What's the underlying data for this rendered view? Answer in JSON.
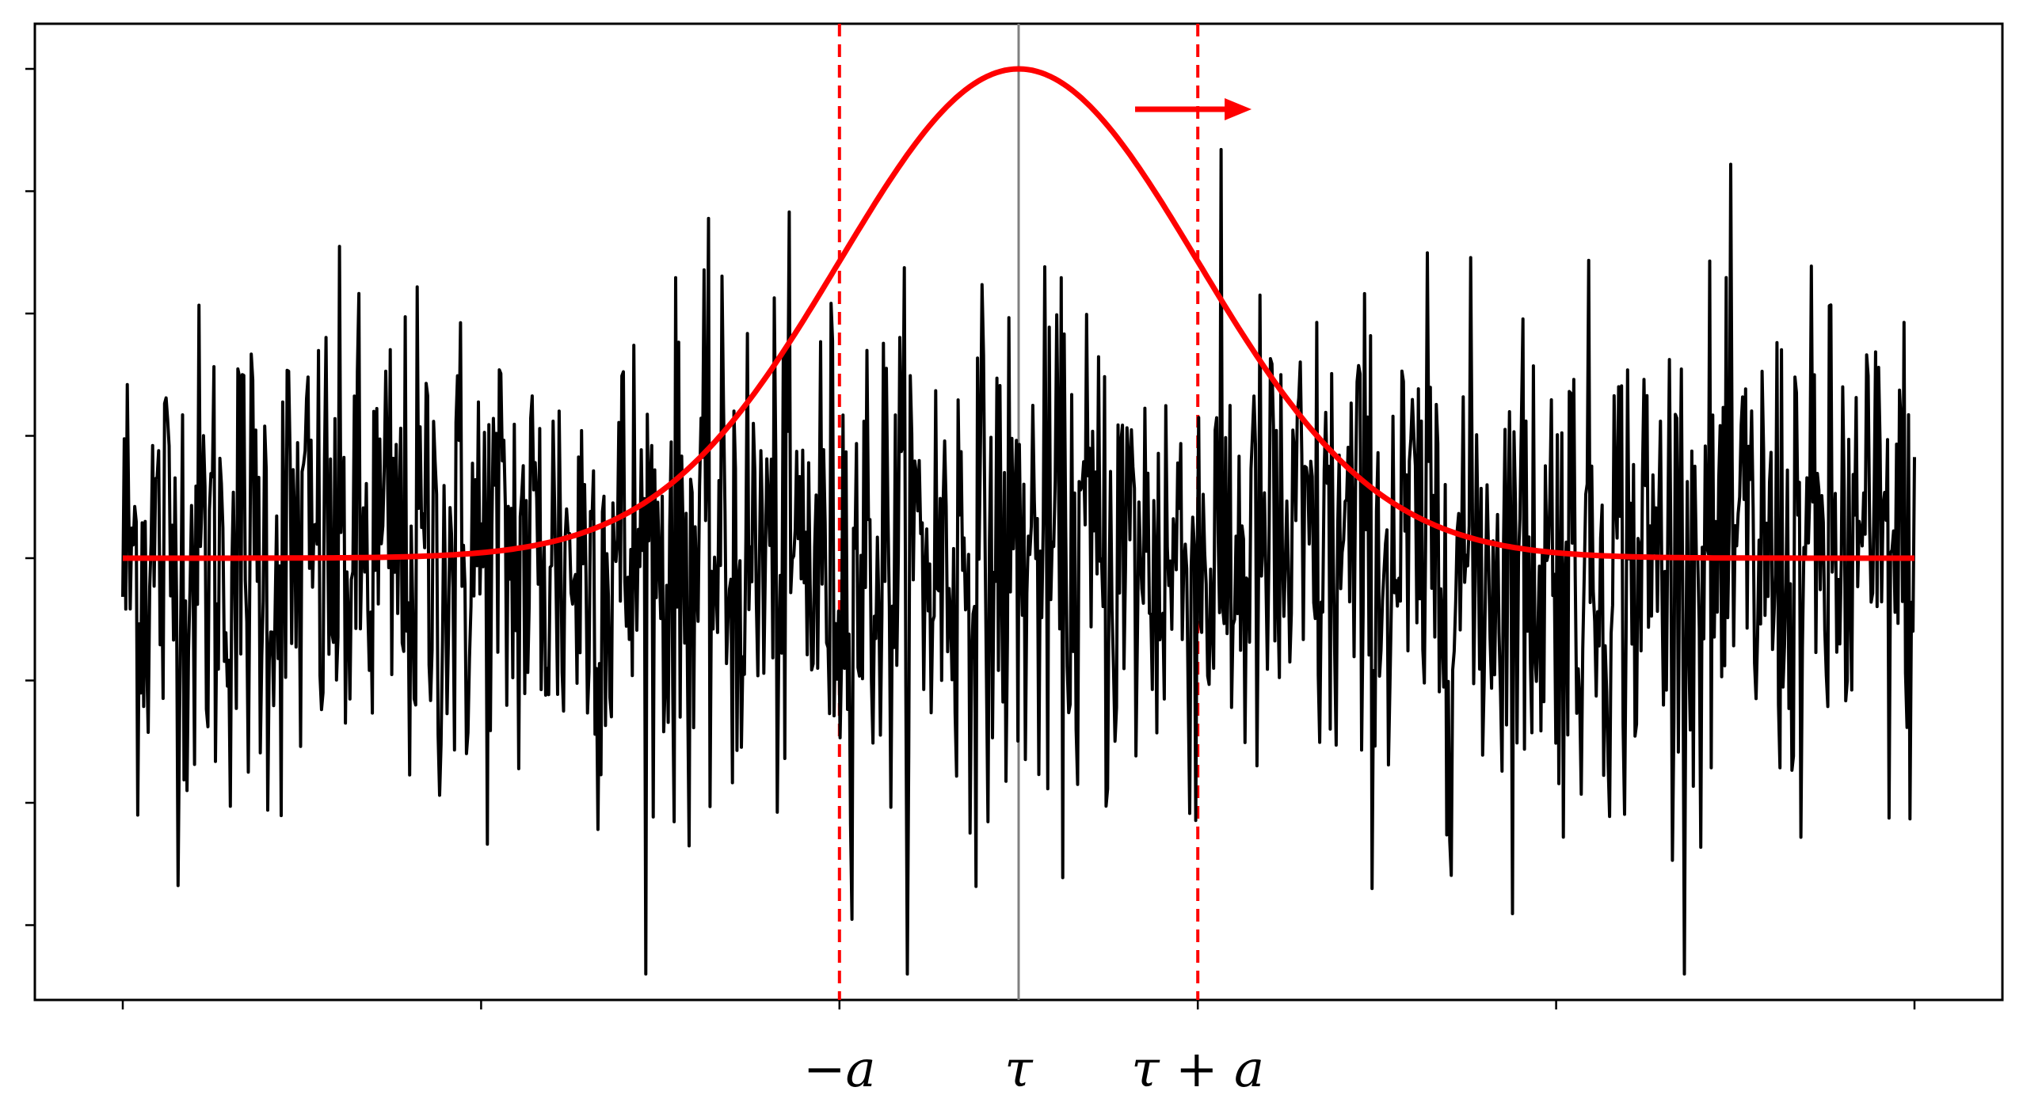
{
  "chart_data": {
    "type": "line",
    "title": "",
    "xlabel": "",
    "ylabel": "",
    "xlim": [
      0,
      10
    ],
    "ylim": [
      -3.6,
      4.4
    ],
    "grid": false,
    "x_ticks": [
      0,
      2,
      4,
      5,
      6,
      8,
      10
    ],
    "x_tick_labels": [
      {
        "x": 4,
        "text": "−a"
      },
      {
        "x": 5,
        "text": "τ"
      },
      {
        "x": 6,
        "text": "τ + a"
      }
    ],
    "y_ticks": [
      -3,
      -2,
      -1,
      0,
      1,
      2,
      3,
      4
    ],
    "series": [
      {
        "kind": "noise",
        "color": "#000000",
        "x_start": 0,
        "x_end": 10,
        "n_points": 1200,
        "amplitude_typical": 1.2,
        "amplitude_max": 3.4
      },
      {
        "kind": "gaussian",
        "color": "#ff0000",
        "center": 5,
        "peak": 4,
        "sigma": 1.0,
        "baseline": 0
      }
    ],
    "reference_lines": [
      {
        "x": 5,
        "color": "#808080",
        "style": "solid"
      },
      {
        "x": 4,
        "color": "#ff0000",
        "style": "dashed"
      },
      {
        "x": 6,
        "color": "#ff0000",
        "style": "dashed"
      }
    ],
    "arrow": {
      "direction": "right",
      "color": "#ff0000",
      "x_from": 5.65,
      "x_to": 6.3,
      "y": 3.67
    }
  }
}
